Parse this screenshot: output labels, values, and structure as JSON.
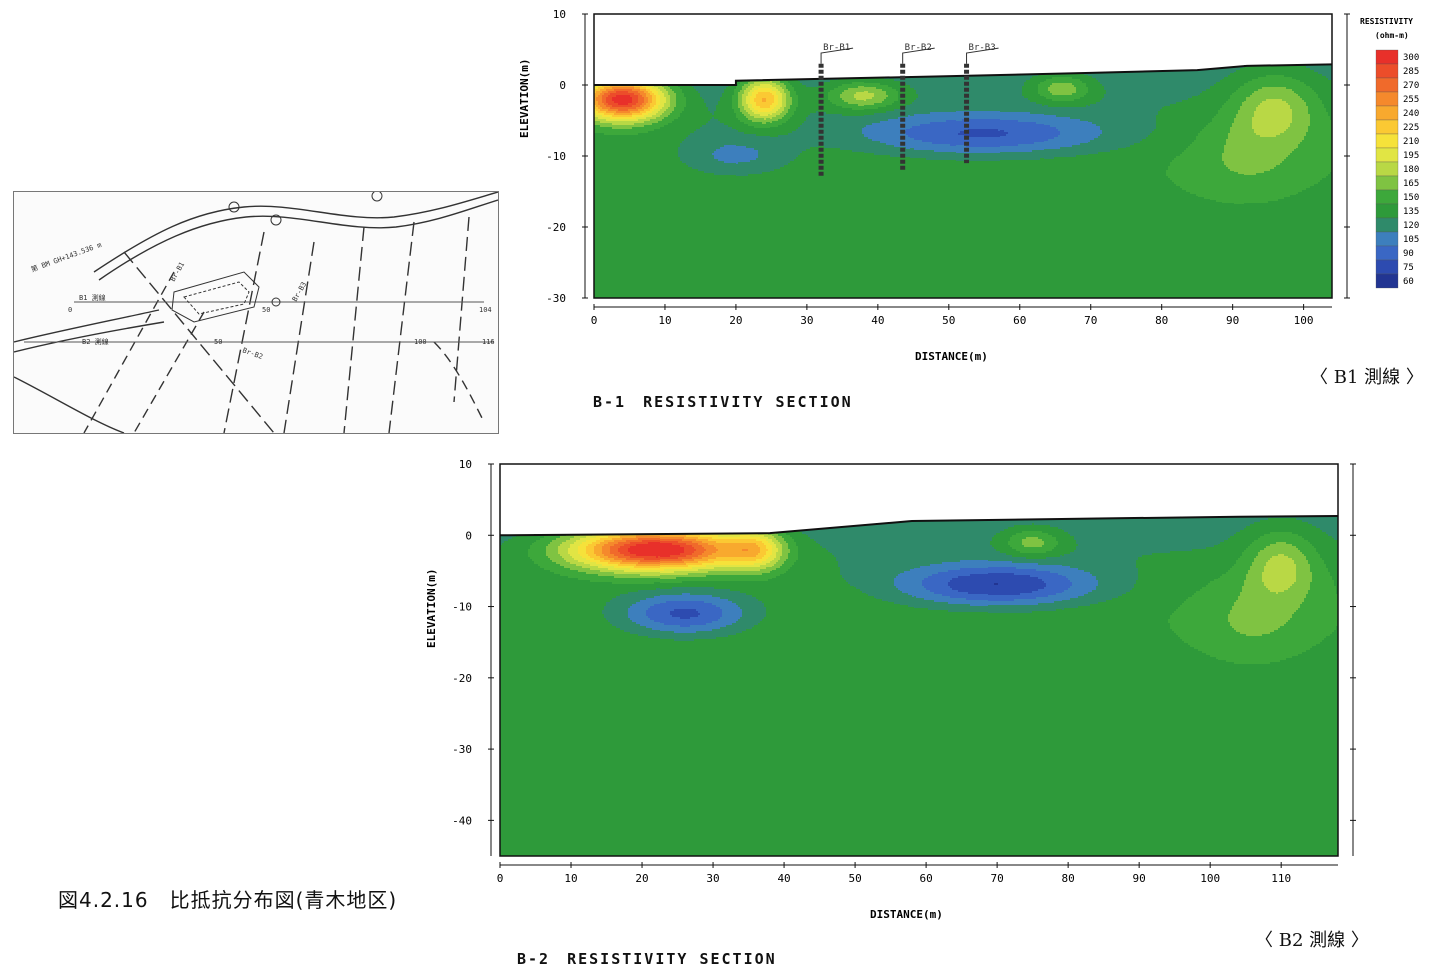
{
  "figure_caption": "図4.2.16　比抵抗分布図(青木地区)",
  "map_inset": {
    "labels": {
      "bm": "第 BM GH+143.536 m",
      "b1_line": "B1 測線",
      "b2_line": "B2 測線",
      "br1": "Br-B1",
      "br2": "Br-B2",
      "br3": "Br-B3",
      "t0": "0",
      "t50": "50",
      "t100": "100",
      "t104": "104",
      "t116": "116",
      "t50b": "50"
    }
  },
  "legend": {
    "title": "RESISTIVITY",
    "unit": "(ohm-m)",
    "levels": [
      300,
      285,
      270,
      255,
      240,
      225,
      210,
      195,
      180,
      165,
      150,
      135,
      120,
      105,
      90,
      75,
      60
    ],
    "colors": [
      "#e8302a",
      "#ec4d2a",
      "#f06a2b",
      "#f5892c",
      "#f8a92e",
      "#fbc933",
      "#f6e23a",
      "#e1e544",
      "#b9d845",
      "#7fc342",
      "#3da83b",
      "#2e9a3a",
      "#2f8a6a",
      "#3d7fbd",
      "#3a67c4",
      "#2d4bb0",
      "#223592"
    ]
  },
  "chart_data": [
    {
      "type": "heatmap",
      "title": "B-1　RESISTIVITY SECTION",
      "line_tag": "〈 B1 測線 〉",
      "xlabel": "DISTANCE(m)",
      "ylabel": "ELEVATION(m)",
      "xlim": [
        0,
        104
      ],
      "ylim": [
        -30,
        10
      ],
      "xticks": [
        0,
        10,
        20,
        30,
        40,
        50,
        60,
        70,
        80,
        90,
        100
      ],
      "yticks": [
        10,
        0,
        -10,
        -20,
        -30
      ],
      "unit": "ohm-m",
      "boreholes": [
        {
          "name": "Br-B1",
          "x": 32,
          "bottom": -13
        },
        {
          "name": "Br-B2",
          "x": 43.5,
          "bottom": -12
        },
        {
          "name": "Br-B3",
          "x": 52.5,
          "bottom": -11
        }
      ],
      "surface": [
        [
          0,
          0
        ],
        [
          20,
          0
        ],
        [
          20,
          0.6
        ],
        [
          48,
          1.2
        ],
        [
          70,
          1.7
        ],
        [
          85,
          2.1
        ],
        [
          92,
          2.7
        ],
        [
          104,
          2.9
        ]
      ],
      "zones": [
        {
          "name": "high-resistivity-left",
          "x": [
            0,
            14
          ],
          "y": [
            -5,
            0
          ],
          "max": 300
        },
        {
          "name": "high-resistivity-24m",
          "x": [
            20,
            29
          ],
          "y": [
            -5,
            0
          ],
          "max": 240
        },
        {
          "name": "low-resistivity-center",
          "x": [
            35,
            80
          ],
          "y": [
            -10,
            -3
          ],
          "min": 90
        },
        {
          "name": "moderate-zone-96m",
          "x": [
            86,
            104
          ],
          "y": [
            -16,
            0
          ],
          "max": 195
        }
      ]
    },
    {
      "type": "heatmap",
      "title": "B-2　RESISTIVITY SECTION",
      "line_tag": "〈 B2 測線 〉",
      "xlabel": "DISTANCE(m)",
      "ylabel": "ELEVATION(m)",
      "xlim": [
        0,
        118
      ],
      "ylim": [
        -45,
        10
      ],
      "xticks": [
        0,
        10,
        20,
        30,
        40,
        50,
        60,
        70,
        80,
        90,
        100,
        110
      ],
      "yticks": [
        10,
        0,
        -10,
        -20,
        -30,
        -40
      ],
      "unit": "ohm-m",
      "surface": [
        [
          0,
          0
        ],
        [
          38,
          0.3
        ],
        [
          58,
          2.0
        ],
        [
          88,
          2.4
        ],
        [
          104,
          2.6
        ],
        [
          118,
          2.7
        ]
      ],
      "zones": [
        {
          "name": "high-resistivity-left",
          "x": [
            0,
            38
          ],
          "y": [
            -7,
            0
          ],
          "max": 300
        },
        {
          "name": "low-resistivity-18m",
          "x": [
            18,
            38
          ],
          "y": [
            -15,
            -8
          ],
          "min": 90
        },
        {
          "name": "low-resistivity-68m",
          "x": [
            55,
            95
          ],
          "y": [
            -12,
            -4
          ],
          "min": 60
        },
        {
          "name": "moderate-zone-110m",
          "x": [
            95,
            118
          ],
          "y": [
            -20,
            0
          ],
          "max": 180
        }
      ]
    }
  ]
}
